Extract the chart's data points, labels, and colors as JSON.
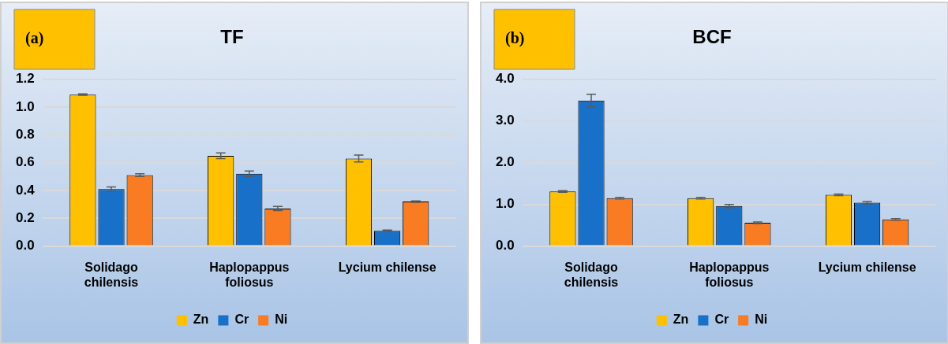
{
  "chart_data": [
    {
      "type": "bar",
      "title": "TF",
      "annotations": [
        "(a)"
      ],
      "categories": [
        "Solidago chilensis",
        "Haplopappus foliosus",
        "Lycium chilense"
      ],
      "series": [
        {
          "name": "Zn",
          "color": "#ffc000",
          "values": [
            1.09,
            0.65,
            0.63
          ],
          "errors": [
            0.005,
            0.02,
            0.025
          ]
        },
        {
          "name": "Cr",
          "color": "#1870c8",
          "values": [
            0.41,
            0.52,
            0.11
          ],
          "errors": [
            0.015,
            0.02,
            0.005
          ]
        },
        {
          "name": "Ni",
          "color": "#f97b22",
          "values": [
            0.51,
            0.27,
            0.32
          ],
          "errors": [
            0.01,
            0.015,
            0.005
          ]
        }
      ],
      "ylim": [
        0,
        1.2
      ],
      "yticks": [
        {
          "value": 0,
          "label": "0.0"
        },
        {
          "value": 0.2,
          "label": "0.2"
        },
        {
          "value": 0.4,
          "label": "0.4"
        },
        {
          "value": 0.6,
          "label": "0.6"
        },
        {
          "value": 0.8,
          "label": "0.8"
        },
        {
          "value": 1,
          "label": "1.0"
        },
        {
          "value": 1.2,
          "label": "1.2"
        }
      ],
      "grid": "y",
      "legend": "bottom"
    },
    {
      "type": "bar",
      "title": "BCF",
      "annotations": [
        "(b)"
      ],
      "categories": [
        "Solidago chilensis",
        "Haplopappus foliosus",
        "Lycium chilense"
      ],
      "series": [
        {
          "name": "Zn",
          "color": "#ffc000",
          "values": [
            1.31,
            1.15,
            1.23
          ],
          "errors": [
            0.02,
            0.02,
            0.02
          ]
        },
        {
          "name": "Cr",
          "color": "#1870c8",
          "values": [
            3.49,
            0.96,
            1.04
          ],
          "errors": [
            0.15,
            0.04,
            0.03
          ]
        },
        {
          "name": "Ni",
          "color": "#f97b22",
          "values": [
            1.15,
            0.56,
            0.64
          ],
          "errors": [
            0.02,
            0.02,
            0.02
          ]
        }
      ],
      "ylim": [
        0,
        4
      ],
      "yticks": [
        {
          "value": 0,
          "label": "0.0"
        },
        {
          "value": 1,
          "label": "1.0"
        },
        {
          "value": 2,
          "label": "2.0"
        },
        {
          "value": 3,
          "label": "3.0"
        },
        {
          "value": 4,
          "label": "4.0"
        }
      ],
      "grid": "y",
      "legend": "bottom"
    }
  ]
}
